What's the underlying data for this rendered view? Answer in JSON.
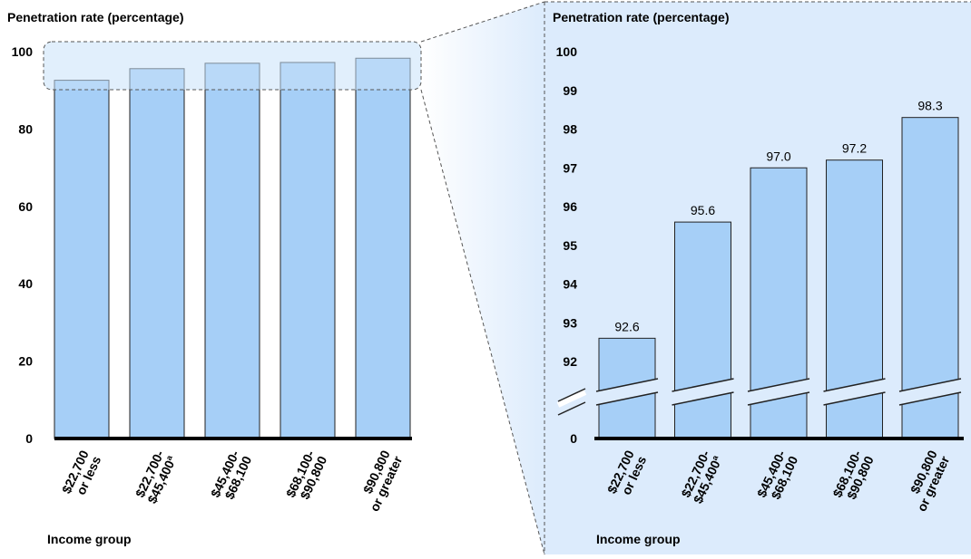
{
  "colors": {
    "bar": "#a6cff7",
    "panel": "#dcebfc",
    "stroke": "#222222"
  },
  "chart_data": [
    {
      "type": "bar",
      "title": "",
      "ylabel": "Penetration rate (percentage)",
      "xlabel": "Income group",
      "categories": [
        [
          "$22,700",
          "or less"
        ],
        [
          "$22,700-",
          "$45,400ª"
        ],
        [
          "$45,400-",
          "$68,100"
        ],
        [
          "$68,100-",
          "$90,800"
        ],
        [
          "$90,800",
          "or greater"
        ]
      ],
      "values": [
        92.6,
        95.6,
        97.0,
        97.2,
        98.3
      ],
      "ylim": [
        0,
        100
      ],
      "yticks": [
        "0",
        "20",
        "40",
        "60",
        "80",
        "100"
      ],
      "grid": false
    },
    {
      "type": "bar",
      "title": "",
      "ylabel": "Penetration rate (percentage)",
      "xlabel": "Income group",
      "categories": [
        [
          "$22,700",
          "or less"
        ],
        [
          "$22,700-",
          "$45,400ª"
        ],
        [
          "$45,400-",
          "$68,100"
        ],
        [
          "$68,100-",
          "$90,800"
        ],
        [
          "$90,800",
          "or greater"
        ]
      ],
      "values": [
        92.6,
        95.6,
        97.0,
        97.2,
        98.3
      ],
      "data_labels": [
        "92.6",
        "95.6",
        "97.0",
        "97.2",
        "98.3"
      ],
      "ylim": [
        91,
        100
      ],
      "yticks": [
        "0",
        "92",
        "93",
        "94",
        "95",
        "96",
        "97",
        "98",
        "99",
        "100"
      ],
      "axis_break": true,
      "grid": false
    }
  ]
}
